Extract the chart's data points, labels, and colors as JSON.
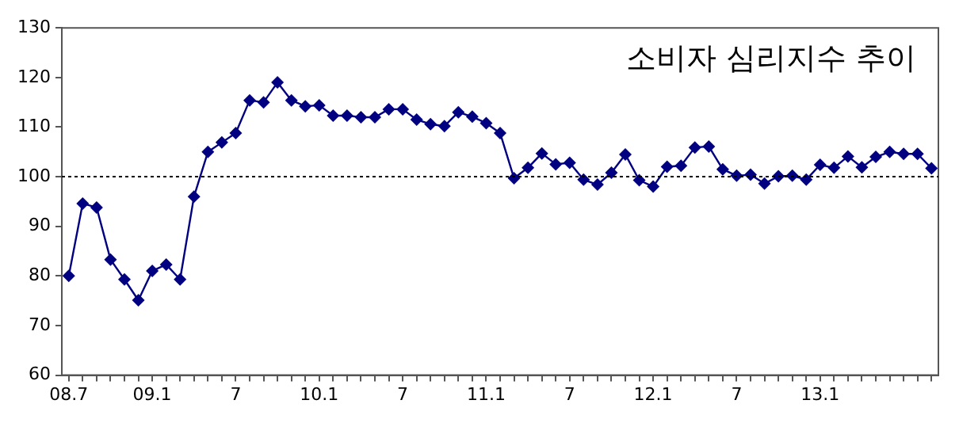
{
  "chart_data": {
    "type": "line",
    "title": "소비자 심리지수 추이",
    "categories": [
      "08.7",
      null,
      null,
      null,
      null,
      null,
      "09.1",
      null,
      null,
      null,
      null,
      null,
      "7",
      null,
      null,
      null,
      null,
      null,
      "10.1",
      null,
      null,
      null,
      null,
      null,
      "7",
      null,
      null,
      null,
      null,
      null,
      "11.1",
      null,
      null,
      null,
      null,
      null,
      "7",
      null,
      null,
      null,
      null,
      null,
      "12.1",
      null,
      null,
      null,
      null,
      null,
      "7",
      null,
      null,
      null,
      null,
      null,
      "13.1",
      null,
      null,
      null,
      null,
      null,
      null,
      null,
      null
    ],
    "series": [
      {
        "color": "#000080",
        "values": [
          80,
          94.6,
          93.8,
          83.3,
          79.3,
          75.1,
          81,
          82.3,
          79.3,
          96,
          105,
          106.9,
          108.8,
          115.4,
          115,
          119,
          115.4,
          114.2,
          114.4,
          112.3,
          112.3,
          112,
          112,
          113.6,
          113.6,
          111.5,
          110.6,
          110.2,
          113,
          112.1,
          110.8,
          108.8,
          99.7,
          101.8,
          104.7,
          102.5,
          102.8,
          99.4,
          98.4,
          100.8,
          104.5,
          99.3,
          98,
          102,
          102.2,
          105.9,
          106.1,
          101.5,
          100.2,
          100.4,
          98.6,
          100.1,
          100.2,
          99.4,
          102.4,
          101.8,
          104.1,
          101.9,
          104,
          105,
          104.6,
          104.6,
          101.7
        ]
      }
    ],
    "ylim": [
      60,
      130
    ],
    "yticks": [
      60,
      70,
      80,
      90,
      100,
      110,
      120,
      130
    ],
    "ref_lines": [
      {
        "axis": "y",
        "value": 100,
        "color": "#000000",
        "line_style": "dotted"
      }
    ],
    "marker": "diamond",
    "line_style": "solid",
    "grid": false,
    "legend": false
  }
}
